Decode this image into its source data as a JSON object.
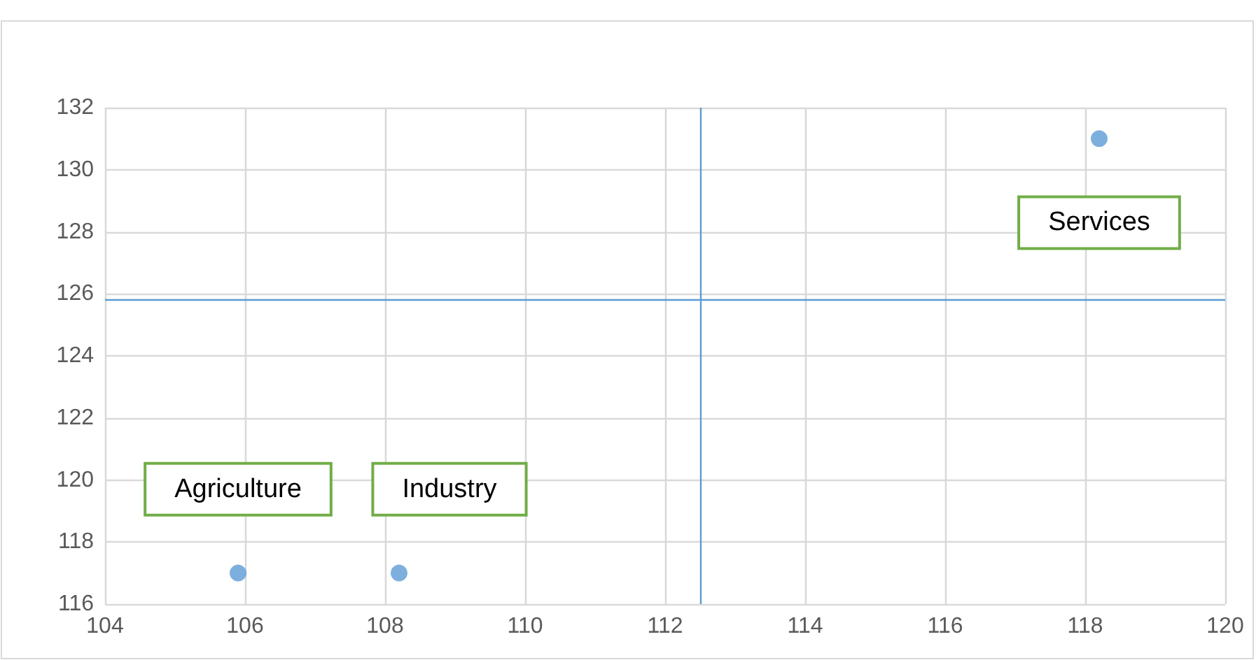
{
  "chart_data": {
    "type": "scatter",
    "x": [
      105.9,
      108.2,
      118.2
    ],
    "values": [
      117,
      117,
      131
    ],
    "color": "#5b9bd5",
    "marker": "circle",
    "xlim": [
      104,
      120
    ],
    "xticks": [
      104,
      106,
      108,
      110,
      112,
      114,
      116,
      118,
      120
    ],
    "ylim": [
      116,
      132
    ],
    "yticks": [
      116,
      118,
      120,
      122,
      124,
      126,
      128,
      130,
      132
    ],
    "grid": true,
    "ref_lines": [
      {
        "axis": "x",
        "value": 112.5,
        "color": "#5b9bd5"
      },
      {
        "axis": "y",
        "value": 125.8,
        "color": "#5b9bd5"
      }
    ],
    "annotations": [
      "Agriculture",
      "Industry",
      "Services"
    ]
  }
}
